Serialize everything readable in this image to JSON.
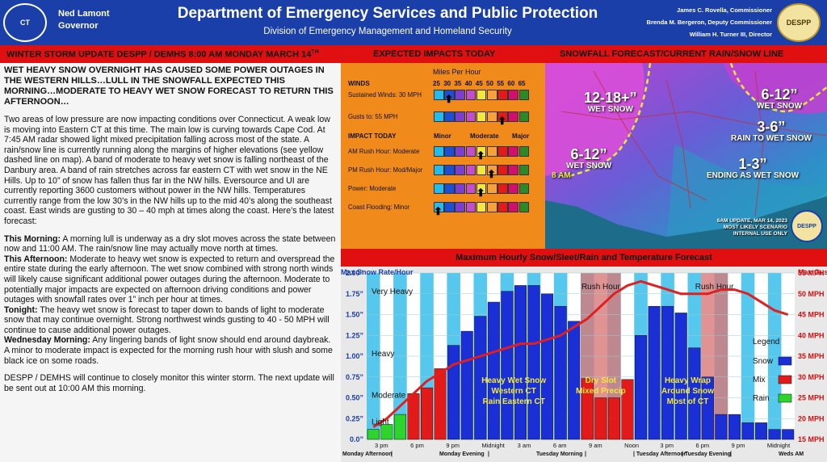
{
  "header": {
    "left_seal": "CT",
    "right_seal": "DESPP",
    "governor_name": "Ned Lamont",
    "governor_title": "Governor",
    "title": "Department of Emergency Services and Public Protection",
    "subtitle": "Division of Emergency Management and Homeland Security",
    "officials": [
      "James C. Rovella, Commissioner",
      "Brenda M. Bergeron, Deputy Commissioner",
      "William H. Turner III, Director"
    ]
  },
  "section_bar": {
    "update_title": "WINTER STORM UPDATE DESPP / DEMHS 8:00 AM MONDAY MARCH 14",
    "update_sup": "TH",
    "impacts_title": "EXPECTED IMPACTS TODAY",
    "snowfall_title": "SNOWFALL FORECAST/CURRENT RAIN/SNOW LINE"
  },
  "text": {
    "headline": "WET HEAVY SNOW OVERNIGHT HAS CAUSED SOME POWER OUTAGES IN THE WESTERN HILLS…LULL IN THE SNOWFALL EXPECTED THIS MORNING…MODERATE TO HEAVY WET SNOW FORECAST TO RETURN THIS AFTERNOON…",
    "summary": "Two areas of low pressure are now impacting conditions over Connecticut. A weak low is moving into Eastern CT at this time. The main low is curving towards Cape Cod. At 7:45 AM radar showed light mixed precipitation falling across most of the state. A rain/snow line is currently running along the margins of higher elevations (see yellow dashed line on map). A band of moderate to heavy wet snow is falling northeast of the Danbury area. A band of rain stretches across far eastern CT with wet snow in the NE Hills. Up to 10” of snow has fallen thus far in the NW hills. Eversource and UI are currently reporting 3600 customers without power in the NW hills. Temperatures currently range from the low 30’s in the NW hills up to the mid 40’s along the southeast coast. East winds are gusting to 30 – 40 mph at times along the coast. Here’s the latest forecast:",
    "this_morning_label": "This Morning:",
    "this_morning": " A morning lull is underway as a dry slot moves across the state between now and 11:00 AM. The rain/snow line may actually move north at times.",
    "this_afternoon_label": "This Afternoon:",
    "this_afternoon": " Moderate to heavy wet snow is expected to return and overspread the entire state during the early afternoon. The wet snow combined with strong north winds will likely cause significant additional power outages during the afternoon. Moderate to potentially major impacts are expected on afternoon driving conditions and power outages with snowfall rates over 1” inch per hour at times.",
    "tonight_label": "Tonight:",
    "tonight": " The heavy wet snow is forecast to taper down to bands of light to moderate snow that may continue overnight. Strong northwest winds gusting to 40 - 50 MPH will continue to cause additional power outages.",
    "wednesday_label": "Wednesday Morning:",
    "wednesday": " Any lingering bands of light snow should end around daybreak. A minor to moderate impact is expected for the morning rush hour with slush and some black ice on some roads.",
    "closing": "DESPP / DEMHS will continue to closely monitor this winter storm. The next update will be sent out at 10:00 AM this morning."
  },
  "impacts": {
    "mph_title": "Miles Per Hour",
    "winds_label": "WINDS",
    "mph_ticks": [
      "25",
      "30",
      "35",
      "40",
      "45",
      "50",
      "55",
      "60",
      "65"
    ],
    "impact_label": "IMPACT TODAY",
    "minor": "Minor",
    "moderate": "Moderate",
    "major": "Major",
    "scale_colors": [
      "#22bbee",
      "#1a4fd6",
      "#7a3fd0",
      "#c04fd0",
      "#f3e83a",
      "#f6a13a",
      "#e31a1a",
      "#d0106a",
      "#2a8a2a"
    ],
    "rows": [
      {
        "label": "Sustained Winds: 30 MPH",
        "level": 0.125
      },
      {
        "label": "Gusts to: 55 MPH",
        "level": 0.75
      },
      {
        "label": "AM Rush Hour: Moderate",
        "level": 0.5
      },
      {
        "label": "PM Rush Hour: Mod/Major",
        "level": 0.625
      },
      {
        "label": "Power: Moderate",
        "level": 0.5
      },
      {
        "label": "Coast Flooding: Minor",
        "level": 0
      }
    ]
  },
  "map": {
    "zones": [
      {
        "amount": "12-18+”",
        "desc": "WET SNOW"
      },
      {
        "amount": "6-12”",
        "desc": "WET SNOW"
      },
      {
        "amount": "3-6”",
        "desc": "RAIN TO WET SNOW"
      },
      {
        "amount": "6-12”",
        "desc": "WET SNOW"
      },
      {
        "amount": "1-3”",
        "desc": "ENDING AS WET SNOW"
      }
    ],
    "rain_snow_line_time": "8 AM",
    "update_note": [
      "6AM UPDATE, MAR 14, 2023",
      "MOST LIKELY SCENARIO",
      "INTERNAL USE ONLY"
    ],
    "seal_text": "DESPP",
    "colors": {
      "heavy": "#d24bd8",
      "moderate": "#5c6fd8",
      "light": "#2ca8c8",
      "line": "#f3e83a"
    }
  },
  "chart_data": {
    "type": "bar",
    "title": "Maximum Hourly Snow/Sleet/Rain and Temperature Forecast",
    "ylabel_left": "Max Snow Rate/Hour",
    "ylabel_right": "Max Gusts",
    "y_left_ticks": [
      "0.0”",
      "0.25”",
      "0.50”",
      "0.75”",
      "1.00”",
      "1.25”",
      "1.50”",
      "1.75”",
      "2.00”"
    ],
    "ylim_left": [
      0,
      2.0
    ],
    "y_right_ticks": [
      "15 MPH",
      "20 MPH",
      "25 MPH",
      "30 MPH",
      "35 MPH",
      "40 MPH",
      "45 MPH",
      "50 MPH",
      "55 MPH"
    ],
    "ylim_right": [
      15,
      55
    ],
    "x_ticks": [
      "3 pm",
      "6 pm",
      "9 pm",
      "Midnight",
      "3 am",
      "6 am",
      "9 am",
      "Noon",
      "3 pm",
      "6 pm",
      "9 pm",
      "Midnight"
    ],
    "x_day_labels": [
      "Monday Afternoon",
      "|",
      "Monday Evening",
      "|",
      "Tuesday Morning",
      "|",
      "| Tuesday Afternoon",
      "| Tuesday Evening",
      "|",
      "Weds AM"
    ],
    "intensity_labels": [
      "Very Heavy",
      "Heavy",
      "Moderate",
      "Light"
    ],
    "rush_hour_label": "Rush Hour",
    "annotations": [
      {
        "line1": "Heavy Wet Snow",
        "line2": "Western CT",
        "line3": "Rain Eastern CT"
      },
      {
        "line1": "Dry Slot",
        "line2": "Mixed Precip"
      },
      {
        "line1": "Heavy Wrap",
        "line2": "Around Snow",
        "line3": "Most of CT"
      }
    ],
    "legend_title": "Legend",
    "legend": [
      {
        "name": "Snow",
        "color": "#1a2fd6"
      },
      {
        "name": "Mix",
        "color": "#e31a1a"
      },
      {
        "name": "Rain",
        "color": "#2cd42c"
      }
    ],
    "bars": [
      {
        "v": 0.12,
        "t": "rain"
      },
      {
        "v": 0.18,
        "t": "rain"
      },
      {
        "v": 0.3,
        "t": "rain"
      },
      {
        "v": 0.55,
        "t": "mix"
      },
      {
        "v": 0.62,
        "t": "mix"
      },
      {
        "v": 0.85,
        "t": "mix"
      },
      {
        "v": 1.13,
        "t": "snow"
      },
      {
        "v": 1.3,
        "t": "snow"
      },
      {
        "v": 1.48,
        "t": "snow"
      },
      {
        "v": 1.65,
        "t": "snow"
      },
      {
        "v": 1.78,
        "t": "snow"
      },
      {
        "v": 1.85,
        "t": "snow"
      },
      {
        "v": 1.85,
        "t": "snow"
      },
      {
        "v": 1.75,
        "t": "snow"
      },
      {
        "v": 1.6,
        "t": "snow"
      },
      {
        "v": 1.42,
        "t": "snow"
      },
      {
        "v": 0.73,
        "t": "mix"
      },
      {
        "v": 0.5,
        "t": "mix"
      },
      {
        "v": 0.5,
        "t": "mix"
      },
      {
        "v": 0.72,
        "t": "mix"
      },
      {
        "v": 1.25,
        "t": "snow"
      },
      {
        "v": 1.6,
        "t": "snow"
      },
      {
        "v": 1.6,
        "t": "snow"
      },
      {
        "v": 1.52,
        "t": "snow"
      },
      {
        "v": 1.1,
        "t": "snow"
      },
      {
        "v": 0.75,
        "t": "snow"
      },
      {
        "v": 0.3,
        "t": "snow"
      },
      {
        "v": 0.3,
        "t": "snow"
      },
      {
        "v": 0.2,
        "t": "snow"
      },
      {
        "v": 0.2,
        "t": "snow"
      },
      {
        "v": 0.12,
        "t": "snow"
      },
      {
        "v": 0.12,
        "t": "snow"
      }
    ],
    "gust_series": {
      "name": "Max Gusts",
      "values": [
        18,
        20,
        23,
        26,
        29,
        31,
        33,
        34,
        35,
        36,
        37,
        38,
        38,
        39,
        40,
        42,
        44,
        47,
        50,
        52,
        53,
        52,
        51,
        50,
        50,
        50,
        51,
        51,
        50,
        48,
        46,
        45
      ]
    },
    "rush_hour_bars": [
      [
        16,
        18
      ],
      [
        25,
        26
      ]
    ]
  }
}
